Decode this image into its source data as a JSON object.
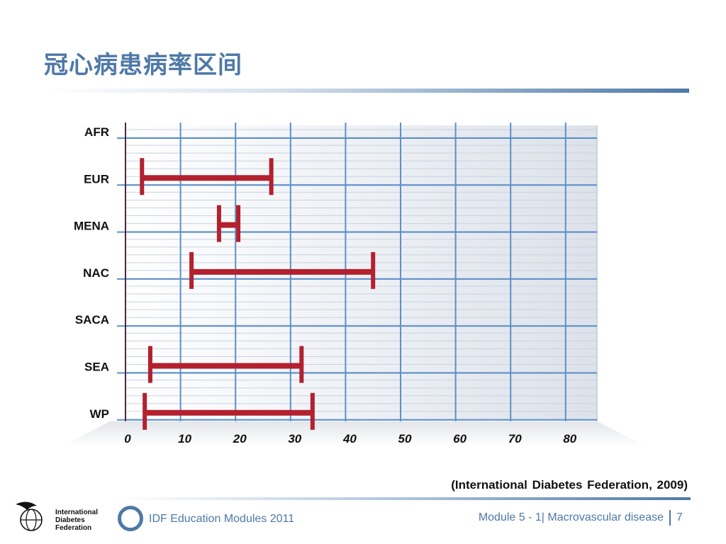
{
  "title": "冠心病患病率区间",
  "source": "(International Diabetes Federation, 2009)",
  "footer": {
    "logo_lines": [
      "International",
      "Diabetes",
      "Federation"
    ],
    "modules": "IDF Education Modules 2011",
    "module_info": "Module 5 - 1| Macrovascular disease",
    "page": "7"
  },
  "colors": {
    "title": "#4e79a7",
    "bar": "#b3202e",
    "grid": "#5b8fc9"
  },
  "chart_data": {
    "type": "range-bar",
    "orientation": "horizontal",
    "categories": [
      "AFR",
      "EUR",
      "MENA",
      "NAC",
      "SACA",
      "SEA",
      "WP"
    ],
    "ranges": [
      null,
      [
        3,
        26.5
      ],
      [
        17,
        20.5
      ],
      [
        12,
        45
      ],
      null,
      [
        4.5,
        32
      ],
      [
        3.5,
        34
      ]
    ],
    "x_ticks": [
      "0",
      "10",
      "20",
      "30",
      "40",
      "50",
      "60",
      "70",
      "80"
    ],
    "xlim": [
      0,
      85
    ],
    "grid": true
  }
}
